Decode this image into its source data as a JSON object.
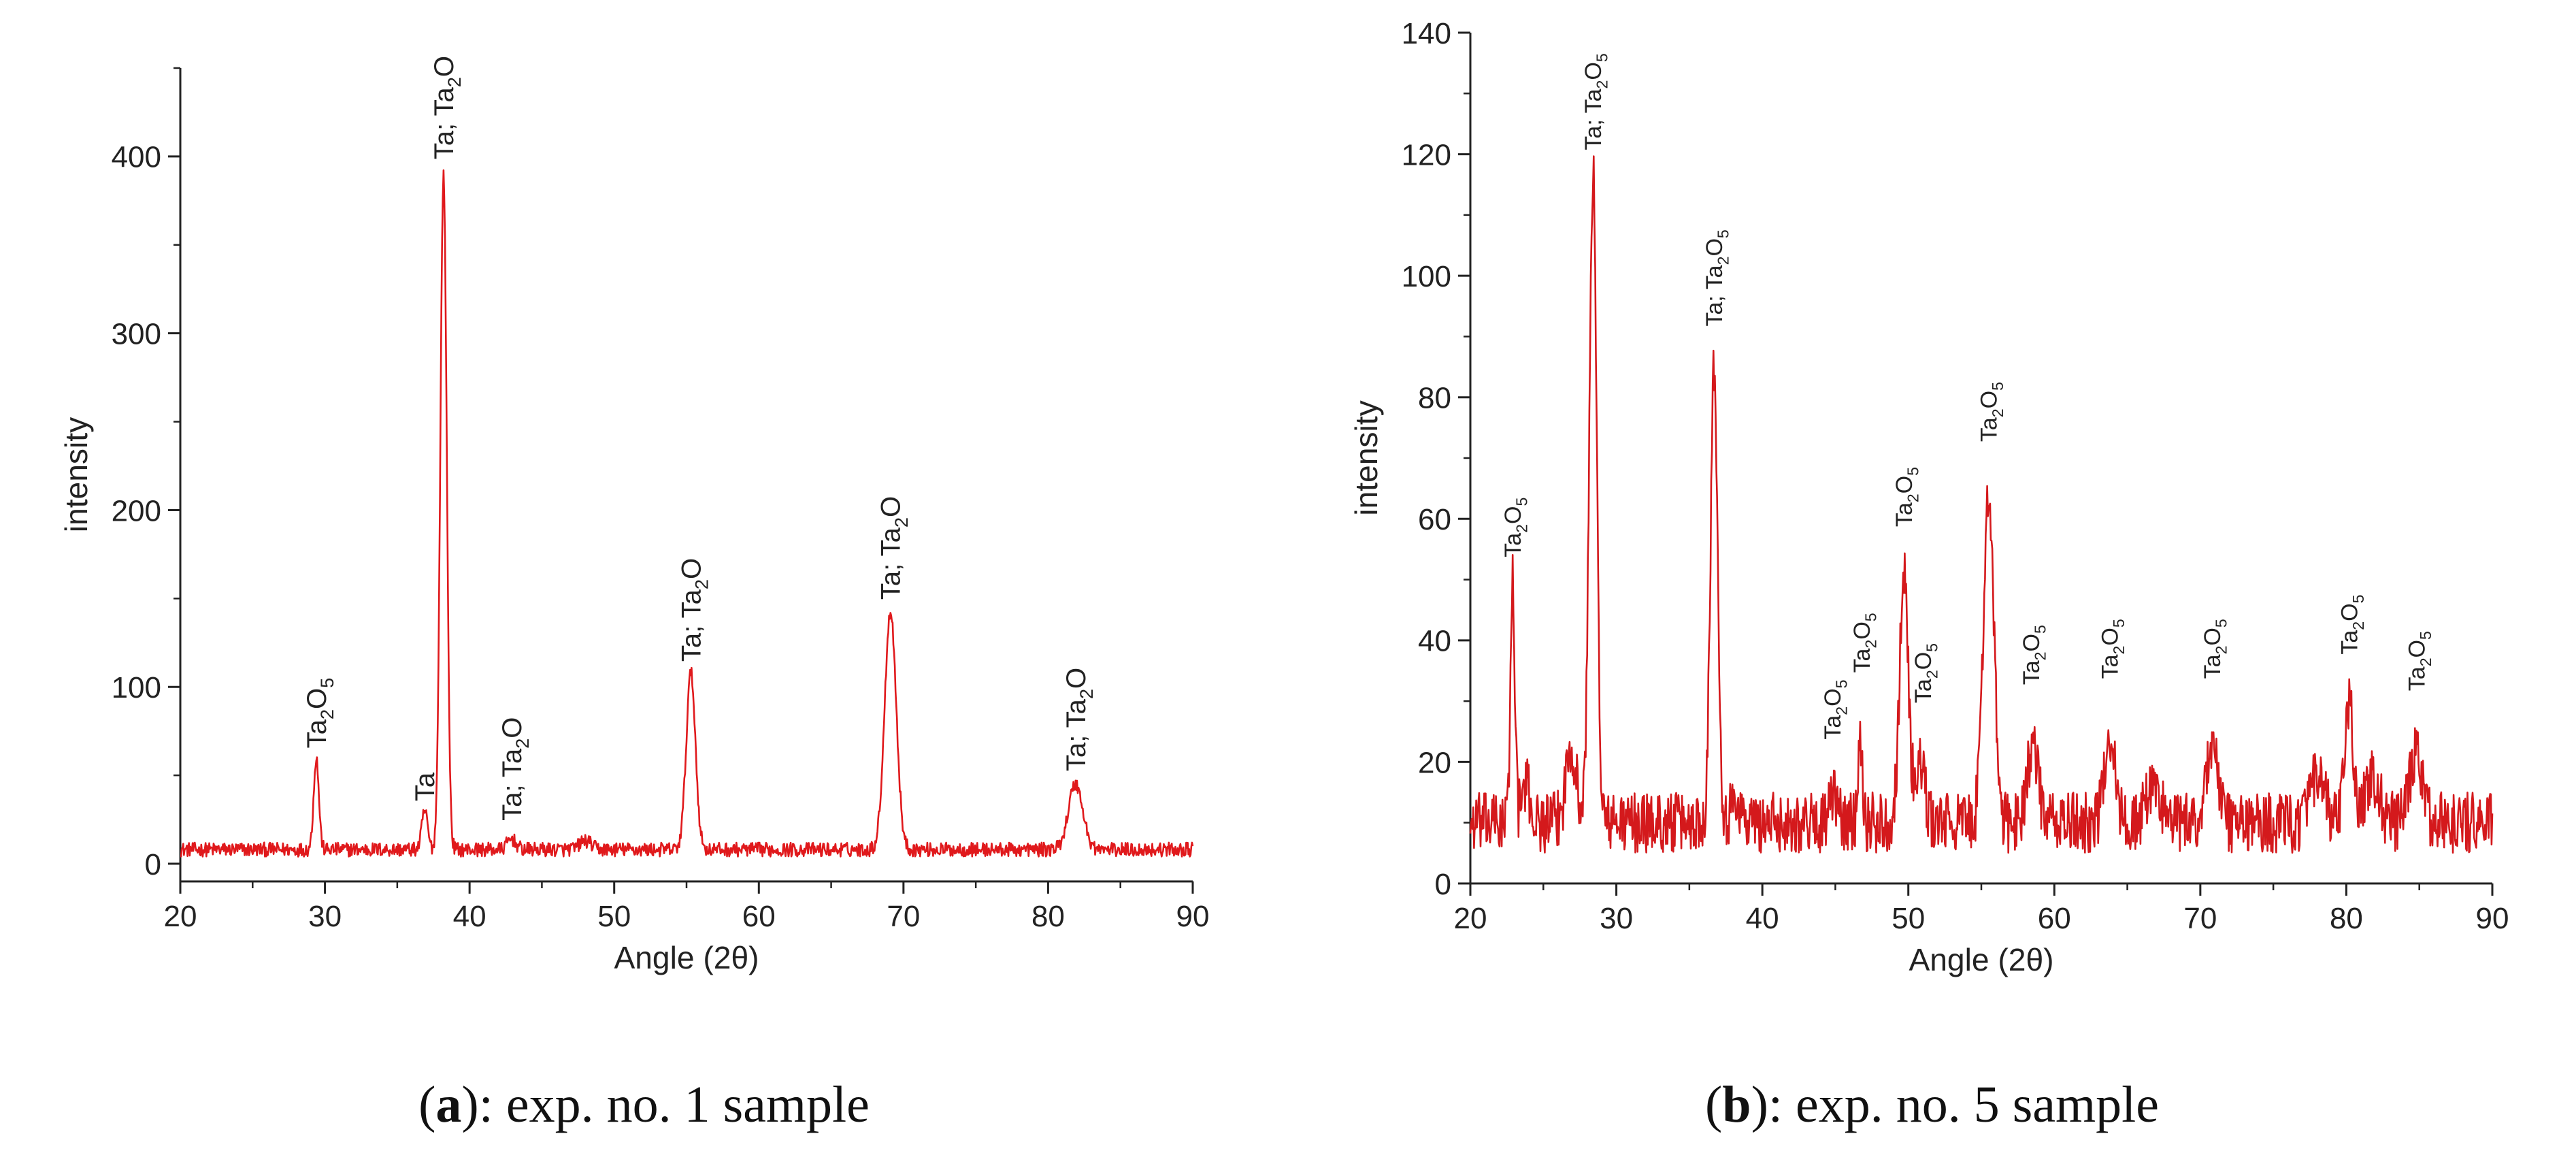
{
  "chart_data": [
    {
      "type": "line",
      "panel_label": "a",
      "caption": "exp. no. 1 sample",
      "xlabel": "Angle (2θ)",
      "ylabel": "intensity",
      "xlim": [
        20,
        90
      ],
      "ylim": [
        -10,
        450
      ],
      "x_ticks": [
        20,
        30,
        40,
        50,
        60,
        70,
        80,
        90
      ],
      "y_ticks": [
        0,
        100,
        200,
        300,
        400
      ],
      "grid": false,
      "line_color": "#e0191c",
      "baseline": 8,
      "noise": 4,
      "peaks": [
        {
          "x": 29.4,
          "y": 60,
          "w": 0.18
        },
        {
          "x": 36.9,
          "y": 30,
          "w": 0.2
        },
        {
          "x": 38.2,
          "y": 390,
          "w": 0.22
        },
        {
          "x": 42.9,
          "y": 14,
          "w": 0.3
        },
        {
          "x": 48.0,
          "y": 13,
          "w": 0.4
        },
        {
          "x": 55.3,
          "y": 108,
          "w": 0.32
        },
        {
          "x": 69.1,
          "y": 143,
          "w": 0.4
        },
        {
          "x": 81.9,
          "y": 45,
          "w": 0.5
        }
      ],
      "annotations": [
        {
          "x": 29.4,
          "y": 63,
          "parts": [
            "Ta",
            "2",
            "O",
            "5"
          ]
        },
        {
          "x": 36.9,
          "y": 33,
          "parts": [
            "Ta"
          ]
        },
        {
          "x": 38.2,
          "y": 396,
          "parts": [
            "Ta; Ta",
            "2",
            "O"
          ]
        },
        {
          "x": 42.9,
          "y": 22,
          "parts": [
            "Ta; Ta",
            "2",
            "O"
          ]
        },
        {
          "x": 55.3,
          "y": 112,
          "parts": [
            "Ta; Ta",
            "2",
            "O"
          ]
        },
        {
          "x": 69.1,
          "y": 147,
          "parts": [
            "Ta; Ta",
            "2",
            "O"
          ]
        },
        {
          "x": 81.9,
          "y": 50,
          "parts": [
            "Ta; Ta",
            "2",
            "O"
          ]
        }
      ]
    },
    {
      "type": "line",
      "panel_label": "b",
      "caption": "exp. no. 5 sample",
      "xlabel": "Angle (2θ)",
      "ylabel": "intensity",
      "xlim": [
        20,
        90
      ],
      "ylim": [
        0,
        140
      ],
      "x_ticks": [
        20,
        30,
        40,
        50,
        60,
        70,
        80,
        90
      ],
      "y_ticks": [
        0,
        20,
        40,
        60,
        80,
        100,
        120,
        140
      ],
      "grid": false,
      "line_color": "#d4191c",
      "baseline": 10,
      "noise": 5,
      "peaks": [
        {
          "x": 22.9,
          "y": 50,
          "w": 0.15
        },
        {
          "x": 23.8,
          "y": 16,
          "w": 0.3
        },
        {
          "x": 26.9,
          "y": 23,
          "w": 0.35
        },
        {
          "x": 28.4,
          "y": 117,
          "w": 0.25
        },
        {
          "x": 36.7,
          "y": 85,
          "w": 0.25
        },
        {
          "x": 38.2,
          "y": 14,
          "w": 0.3
        },
        {
          "x": 44.9,
          "y": 14,
          "w": 0.3
        },
        {
          "x": 46.7,
          "y": 25,
          "w": 0.15
        },
        {
          "x": 49.7,
          "y": 51,
          "w": 0.3
        },
        {
          "x": 50.8,
          "y": 20,
          "w": 0.3
        },
        {
          "x": 55.5,
          "y": 65,
          "w": 0.35
        },
        {
          "x": 58.5,
          "y": 22,
          "w": 0.4
        },
        {
          "x": 63.8,
          "y": 25,
          "w": 0.35
        },
        {
          "x": 66.8,
          "y": 16,
          "w": 0.5
        },
        {
          "x": 70.8,
          "y": 23,
          "w": 0.4
        },
        {
          "x": 78.0,
          "y": 17,
          "w": 0.5
        },
        {
          "x": 80.2,
          "y": 29,
          "w": 0.3
        },
        {
          "x": 81.8,
          "y": 17,
          "w": 0.5
        },
        {
          "x": 84.8,
          "y": 21,
          "w": 0.45
        }
      ],
      "annotations": [
        {
          "x": 22.9,
          "y": 53,
          "parts": [
            "Ta",
            "2",
            "O",
            "5"
          ]
        },
        {
          "x": 28.4,
          "y": 120,
          "parts": [
            "Ta; Ta",
            "2",
            "O",
            "5"
          ]
        },
        {
          "x": 36.7,
          "y": 91,
          "parts": [
            "Ta; Ta",
            "2",
            "O",
            "5"
          ]
        },
        {
          "x": 44.8,
          "y": 23,
          "parts": [
            "Ta",
            "2",
            "O",
            "5"
          ]
        },
        {
          "x": 46.8,
          "y": 34,
          "parts": [
            "Ta",
            "2",
            "O",
            "5"
          ]
        },
        {
          "x": 49.7,
          "y": 58,
          "parts": [
            "Ta",
            "2",
            "O",
            "5"
          ]
        },
        {
          "x": 51.0,
          "y": 29,
          "parts": [
            "Ta",
            "2",
            "O",
            "5"
          ]
        },
        {
          "x": 55.5,
          "y": 72,
          "parts": [
            "Ta",
            "2",
            "O",
            "5"
          ]
        },
        {
          "x": 58.4,
          "y": 32,
          "parts": [
            "Ta",
            "2",
            "O",
            "5"
          ]
        },
        {
          "x": 63.8,
          "y": 33,
          "parts": [
            "Ta",
            "2",
            "O",
            "5"
          ]
        },
        {
          "x": 70.8,
          "y": 33,
          "parts": [
            "Ta",
            "2",
            "O",
            "5"
          ]
        },
        {
          "x": 80.2,
          "y": 37,
          "parts": [
            "Ta",
            "2",
            "O",
            "5"
          ]
        },
        {
          "x": 84.8,
          "y": 31,
          "parts": [
            "Ta",
            "2",
            "O",
            "5"
          ]
        }
      ]
    }
  ]
}
